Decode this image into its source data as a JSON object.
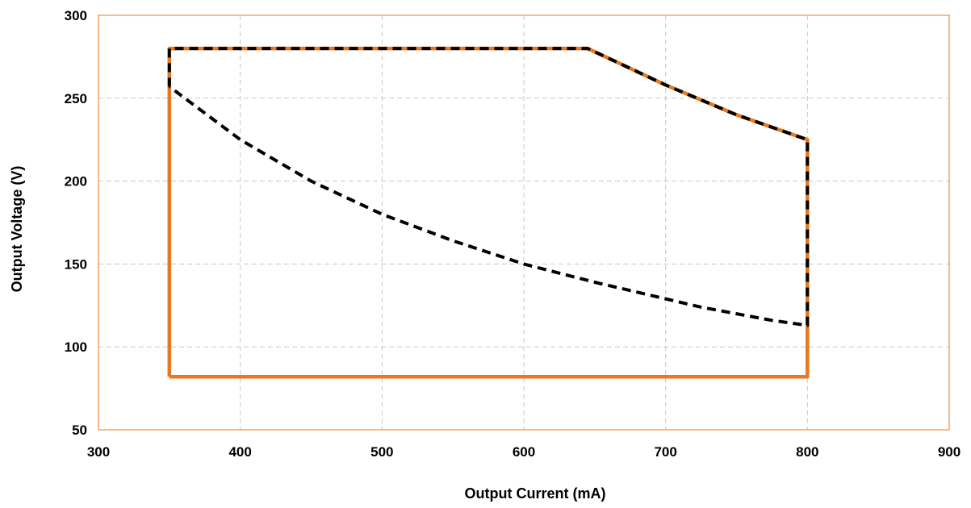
{
  "chart_data": {
    "type": "line",
    "title": "",
    "xlabel": "Output Current (mA)",
    "ylabel": "Output Voltage (V)",
    "xlim": [
      300,
      900
    ],
    "ylim": [
      50,
      300
    ],
    "x_ticks": [
      300,
      400,
      500,
      600,
      700,
      800,
      900
    ],
    "y_ticks": [
      50,
      100,
      150,
      200,
      250,
      300
    ],
    "grid": true,
    "legend": "none",
    "frame_color": "#f4a460",
    "grid_color": "#c8c8c8",
    "series": [
      {
        "color": "#e87722",
        "style": "solid",
        "x": [
          350,
          350,
          645,
          700,
          750,
          800,
          800,
          350
        ],
        "y": [
          82,
          280,
          280,
          258,
          240,
          225,
          82,
          82
        ]
      },
      {
        "color": "#000000",
        "style": "dashed",
        "x": [
          350,
          350,
          645,
          700,
          750,
          800,
          800,
          775,
          750,
          725,
          700,
          650,
          600,
          550,
          500,
          450,
          400,
          350
        ],
        "y": [
          257,
          280,
          280,
          258,
          240,
          225,
          113,
          116,
          120,
          124,
          129,
          139,
          150,
          164,
          180,
          200,
          225,
          257
        ]
      }
    ]
  }
}
